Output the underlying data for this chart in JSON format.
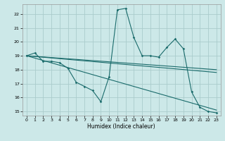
{
  "xlabel": "Humidex (Indice chaleur)",
  "bg_color": "#cce8e8",
  "grid_color": "#aacccc",
  "line_color": "#1a6b6b",
  "xlim": [
    -0.5,
    23.5
  ],
  "ylim": [
    14.7,
    22.7
  ],
  "yticks": [
    15,
    16,
    17,
    18,
    19,
    20,
    21,
    22
  ],
  "xticks": [
    0,
    1,
    2,
    3,
    4,
    5,
    6,
    7,
    8,
    9,
    10,
    11,
    12,
    13,
    14,
    15,
    16,
    17,
    18,
    19,
    20,
    21,
    22,
    23
  ],
  "series": [
    [
      0,
      19.0
    ],
    [
      1,
      19.2
    ],
    [
      2,
      18.6
    ],
    [
      3,
      18.6
    ],
    [
      4,
      18.5
    ],
    [
      5,
      18.1
    ],
    [
      6,
      17.1
    ],
    [
      7,
      16.8
    ],
    [
      8,
      16.5
    ],
    [
      9,
      15.7
    ],
    [
      10,
      17.5
    ],
    [
      11,
      22.3
    ],
    [
      12,
      22.4
    ],
    [
      13,
      20.3
    ],
    [
      14,
      19.0
    ],
    [
      15,
      19.0
    ],
    [
      16,
      18.9
    ],
    [
      17,
      19.6
    ],
    [
      18,
      20.2
    ],
    [
      19,
      19.5
    ],
    [
      20,
      16.4
    ],
    [
      21,
      15.3
    ],
    [
      22,
      15.0
    ],
    [
      23,
      14.9
    ]
  ],
  "line2": [
    [
      0,
      19.0
    ],
    [
      23,
      18.0
    ]
  ],
  "line3": [
    [
      0,
      19.0
    ],
    [
      23,
      17.8
    ]
  ],
  "line4": [
    [
      0,
      19.0
    ],
    [
      23,
      15.1
    ]
  ]
}
